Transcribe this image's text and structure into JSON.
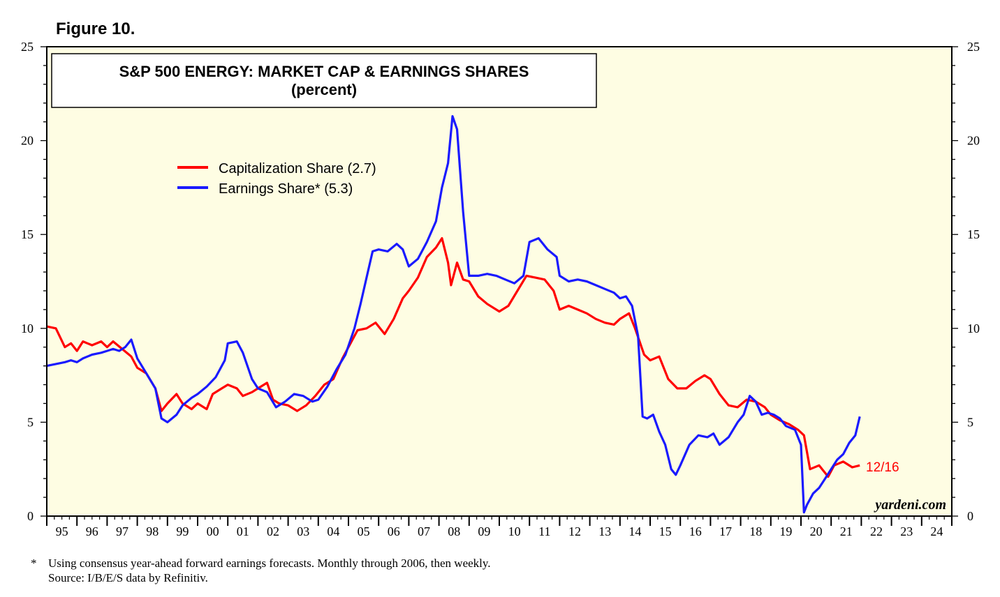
{
  "figure_label": "Figure 10.",
  "footnote": {
    "marker": "*",
    "line1": "Using consensus year-ahead forward earnings forecasts. Monthly through 2006, then weekly.",
    "line2": "Source: I/B/E/S data by Refinitiv."
  },
  "chart_data": {
    "type": "line",
    "title": "S&P 500 ENERGY: MARKET CAP & EARNINGS SHARES",
    "subtitle": "(percent)",
    "watermark": "yardeni.com",
    "end_label": "12/16",
    "xlim": [
      1995,
      2025
    ],
    "ylim": [
      0,
      25
    ],
    "y_ticks": [
      0,
      5,
      10,
      15,
      20,
      25
    ],
    "x_tick_labels": [
      "95",
      "96",
      "97",
      "98",
      "99",
      "00",
      "01",
      "02",
      "03",
      "04",
      "05",
      "06",
      "07",
      "08",
      "09",
      "10",
      "11",
      "12",
      "13",
      "14",
      "15",
      "16",
      "17",
      "18",
      "19",
      "20",
      "21",
      "22",
      "23",
      "24"
    ],
    "background": "#fefde3",
    "legend_position": "upper-left",
    "series": [
      {
        "name": "Capitalization Share (2.7)",
        "color": "#ff0000",
        "x": [
          1995.0,
          1995.3,
          1995.6,
          1995.8,
          1996.0,
          1996.2,
          1996.5,
          1996.8,
          1997.0,
          1997.2,
          1997.5,
          1997.8,
          1998.0,
          1998.3,
          1998.6,
          1998.8,
          1999.0,
          1999.3,
          1999.5,
          1999.8,
          2000.0,
          2000.3,
          2000.5,
          2000.8,
          2001.0,
          2001.3,
          2001.5,
          2001.8,
          2002.0,
          2002.3,
          2002.5,
          2002.7,
          2003.0,
          2003.3,
          2003.6,
          2003.9,
          2004.2,
          2004.5,
          2004.8,
          2005.0,
          2005.3,
          2005.6,
          2005.9,
          2006.2,
          2006.5,
          2006.8,
          2007.0,
          2007.3,
          2007.6,
          2007.9,
          2008.1,
          2008.3,
          2008.4,
          2008.6,
          2008.8,
          2009.0,
          2009.3,
          2009.6,
          2010.0,
          2010.3,
          2010.6,
          2010.9,
          2011.2,
          2011.5,
          2011.8,
          2012.0,
          2012.3,
          2012.6,
          2012.9,
          2013.2,
          2013.5,
          2013.8,
          2014.0,
          2014.3,
          2014.5,
          2014.8,
          2015.0,
          2015.3,
          2015.6,
          2015.9,
          2016.2,
          2016.5,
          2016.8,
          2017.0,
          2017.3,
          2017.6,
          2017.9,
          2018.2,
          2018.5,
          2018.8,
          2019.0,
          2019.3,
          2019.6,
          2019.9,
          2020.1,
          2020.3,
          2020.6,
          2020.9,
          2021.1,
          2021.4,
          2021.7,
          2021.95
        ],
        "values": [
          10.1,
          10.0,
          9.0,
          9.2,
          8.8,
          9.3,
          9.1,
          9.3,
          9.0,
          9.3,
          8.9,
          8.5,
          7.9,
          7.6,
          6.8,
          5.6,
          6.0,
          6.5,
          6.0,
          5.7,
          6.0,
          5.7,
          6.5,
          6.8,
          7.0,
          6.8,
          6.4,
          6.6,
          6.8,
          7.1,
          6.2,
          6.0,
          5.9,
          5.6,
          5.9,
          6.4,
          7.0,
          7.3,
          8.4,
          9.0,
          9.9,
          10.0,
          10.3,
          9.7,
          10.5,
          11.6,
          12.0,
          12.7,
          13.8,
          14.3,
          14.8,
          13.5,
          12.3,
          13.5,
          12.6,
          12.5,
          11.7,
          11.3,
          10.9,
          11.2,
          12.0,
          12.8,
          12.7,
          12.6,
          12.0,
          11.0,
          11.2,
          11.0,
          10.8,
          10.5,
          10.3,
          10.2,
          10.5,
          10.8,
          10.0,
          8.6,
          8.3,
          8.5,
          7.3,
          6.8,
          6.8,
          7.2,
          7.5,
          7.3,
          6.5,
          5.9,
          5.8,
          6.2,
          6.1,
          5.8,
          5.4,
          5.1,
          4.9,
          4.6,
          4.3,
          2.5,
          2.7,
          2.1,
          2.7,
          2.9,
          2.6,
          2.7
        ]
      },
      {
        "name": "Earnings Share* (5.3)",
        "color": "#1a1aff",
        "x": [
          1995.0,
          1995.3,
          1995.6,
          1995.8,
          1996.0,
          1996.2,
          1996.5,
          1996.8,
          1997.0,
          1997.2,
          1997.4,
          1997.6,
          1997.8,
          1998.0,
          1998.3,
          1998.6,
          1998.8,
          1999.0,
          1999.3,
          1999.5,
          1999.8,
          2000.0,
          2000.3,
          2000.6,
          2000.9,
          2001.0,
          2001.3,
          2001.5,
          2001.8,
          2002.0,
          2002.3,
          2002.6,
          2002.9,
          2003.2,
          2003.5,
          2003.8,
          2004.0,
          2004.3,
          2004.6,
          2004.9,
          2005.2,
          2005.4,
          2005.6,
          2005.8,
          2006.0,
          2006.3,
          2006.6,
          2006.8,
          2007.0,
          2007.3,
          2007.6,
          2007.9,
          2008.1,
          2008.3,
          2008.45,
          2008.6,
          2008.8,
          2009.0,
          2009.3,
          2009.6,
          2009.9,
          2010.2,
          2010.5,
          2010.8,
          2011.0,
          2011.3,
          2011.6,
          2011.9,
          2012.0,
          2012.3,
          2012.6,
          2012.9,
          2013.2,
          2013.5,
          2013.8,
          2014.0,
          2014.2,
          2014.4,
          2014.6,
          2014.75,
          2014.9,
          2015.1,
          2015.3,
          2015.5,
          2015.7,
          2015.85,
          2016.0,
          2016.3,
          2016.6,
          2016.9,
          2017.1,
          2017.3,
          2017.6,
          2017.9,
          2018.1,
          2018.3,
          2018.5,
          2018.7,
          2018.9,
          2019.1,
          2019.3,
          2019.5,
          2019.8,
          2020.0,
          2020.1,
          2020.2,
          2020.4,
          2020.6,
          2020.8,
          2021.0,
          2021.2,
          2021.4,
          2021.6,
          2021.8,
          2021.95
        ],
        "values": [
          8.0,
          8.1,
          8.2,
          8.3,
          8.2,
          8.4,
          8.6,
          8.7,
          8.8,
          8.9,
          8.8,
          9.0,
          9.4,
          8.4,
          7.6,
          6.8,
          5.2,
          5.0,
          5.4,
          5.9,
          6.3,
          6.5,
          6.9,
          7.4,
          8.3,
          9.2,
          9.3,
          8.7,
          7.3,
          6.8,
          6.6,
          5.8,
          6.1,
          6.5,
          6.4,
          6.1,
          6.2,
          6.9,
          7.8,
          8.6,
          10.0,
          11.3,
          12.7,
          14.1,
          14.2,
          14.1,
          14.5,
          14.2,
          13.3,
          13.7,
          14.6,
          15.7,
          17.5,
          18.8,
          21.3,
          20.6,
          16.2,
          12.8,
          12.8,
          12.9,
          12.8,
          12.6,
          12.4,
          12.8,
          14.6,
          14.8,
          14.2,
          13.8,
          12.8,
          12.5,
          12.6,
          12.5,
          12.3,
          12.1,
          11.9,
          11.6,
          11.7,
          11.2,
          9.6,
          5.3,
          5.2,
          5.4,
          4.5,
          3.8,
          2.5,
          2.2,
          2.7,
          3.8,
          4.3,
          4.2,
          4.4,
          3.8,
          4.2,
          5.0,
          5.4,
          6.4,
          6.1,
          5.4,
          5.5,
          5.4,
          5.2,
          4.8,
          4.6,
          3.8,
          0.2,
          0.6,
          1.2,
          1.5,
          2.0,
          2.5,
          3.0,
          3.3,
          3.9,
          4.3,
          5.3
        ]
      }
    ]
  }
}
